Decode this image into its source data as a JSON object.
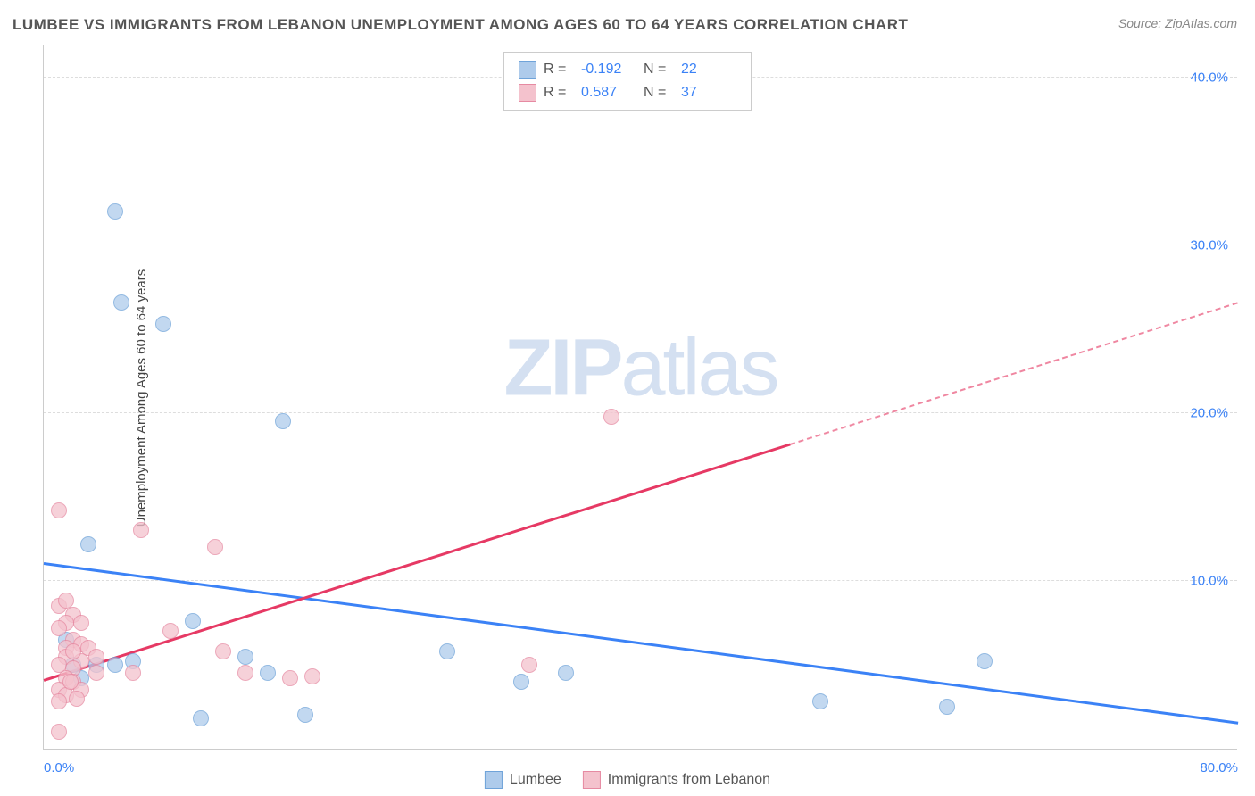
{
  "title": "LUMBEE VS IMMIGRANTS FROM LEBANON UNEMPLOYMENT AMONG AGES 60 TO 64 YEARS CORRELATION CHART",
  "source": "Source: ZipAtlas.com",
  "watermark_a": "ZIP",
  "watermark_b": "atlas",
  "ylabel": "Unemployment Among Ages 60 to 64 years",
  "chart": {
    "type": "scatter",
    "xlim": [
      0,
      80
    ],
    "ylim": [
      0,
      42
    ],
    "xtick_labels": [
      "0.0%",
      "80.0%"
    ],
    "xtick_positions": [
      0,
      80
    ],
    "ytick_labels": [
      "10.0%",
      "20.0%",
      "30.0%",
      "40.0%"
    ],
    "ytick_positions": [
      10,
      20,
      30,
      40
    ],
    "grid_color": "#dddddd",
    "background_color": "#ffffff",
    "axis_color": "#cccccc",
    "tick_font_color": "#3b82f6",
    "label_font_color": "#444444",
    "title_font_color": "#555555",
    "title_fontsize": 17,
    "label_fontsize": 15,
    "tick_fontsize": 15,
    "marker_size": 18,
    "series": [
      {
        "name": "Lumbee",
        "color_fill": "#aecbeb",
        "color_border": "#6fa3d9",
        "R": "-0.192",
        "N": "22",
        "trend": {
          "x1": 0,
          "y1": 11.0,
          "x2": 80,
          "y2": 1.5,
          "solid_to_x": 80,
          "color": "#3b82f6"
        },
        "points": [
          [
            4.8,
            32.0
          ],
          [
            5.2,
            26.6
          ],
          [
            8.0,
            25.3
          ],
          [
            16.0,
            19.5
          ],
          [
            3.0,
            12.2
          ],
          [
            10.0,
            7.6
          ],
          [
            4.8,
            5.0
          ],
          [
            2.0,
            5.0
          ],
          [
            6.0,
            5.2
          ],
          [
            13.5,
            5.5
          ],
          [
            15.0,
            4.5
          ],
          [
            27.0,
            5.8
          ],
          [
            10.5,
            1.8
          ],
          [
            17.5,
            2.0
          ],
          [
            2.5,
            4.2
          ],
          [
            3.5,
            5.0
          ],
          [
            1.5,
            6.5
          ],
          [
            32.0,
            4.0
          ],
          [
            35.0,
            4.5
          ],
          [
            63.0,
            5.2
          ],
          [
            52.0,
            2.8
          ],
          [
            60.5,
            2.5
          ]
        ]
      },
      {
        "name": "Immigrants from Lebanon",
        "color_fill": "#f4c2cd",
        "color_border": "#e68aa2",
        "R": "0.587",
        "N": "37",
        "trend": {
          "x1": 0,
          "y1": 4.0,
          "x2": 80,
          "y2": 26.5,
          "solid_to_x": 50,
          "color": "#e63964"
        },
        "points": [
          [
            1.0,
            14.2
          ],
          [
            6.5,
            13.0
          ],
          [
            11.5,
            12.0
          ],
          [
            1.0,
            8.5
          ],
          [
            1.5,
            8.8
          ],
          [
            2.0,
            8.0
          ],
          [
            1.5,
            7.5
          ],
          [
            1.0,
            7.2
          ],
          [
            2.5,
            7.5
          ],
          [
            2.0,
            6.5
          ],
          [
            1.5,
            6.0
          ],
          [
            2.5,
            6.2
          ],
          [
            3.0,
            6.0
          ],
          [
            1.5,
            5.5
          ],
          [
            2.5,
            5.2
          ],
          [
            1.0,
            5.0
          ],
          [
            2.0,
            4.8
          ],
          [
            1.5,
            4.2
          ],
          [
            3.5,
            4.5
          ],
          [
            2.0,
            4.0
          ],
          [
            1.0,
            3.5
          ],
          [
            1.5,
            3.2
          ],
          [
            2.5,
            3.5
          ],
          [
            1.0,
            2.8
          ],
          [
            6.0,
            4.5
          ],
          [
            8.5,
            7.0
          ],
          [
            12.0,
            5.8
          ],
          [
            13.5,
            4.5
          ],
          [
            16.5,
            4.2
          ],
          [
            18.0,
            4.3
          ],
          [
            1.0,
            1.0
          ],
          [
            32.5,
            5.0
          ],
          [
            38.0,
            19.8
          ],
          [
            3.5,
            5.5
          ],
          [
            2.0,
            5.8
          ],
          [
            1.8,
            4.0
          ],
          [
            2.2,
            3.0
          ]
        ]
      }
    ]
  },
  "legend": {
    "stats_labels": {
      "R": "R =",
      "N": "N ="
    },
    "series_labels": [
      "Lumbee",
      "Immigrants from Lebanon"
    ]
  }
}
